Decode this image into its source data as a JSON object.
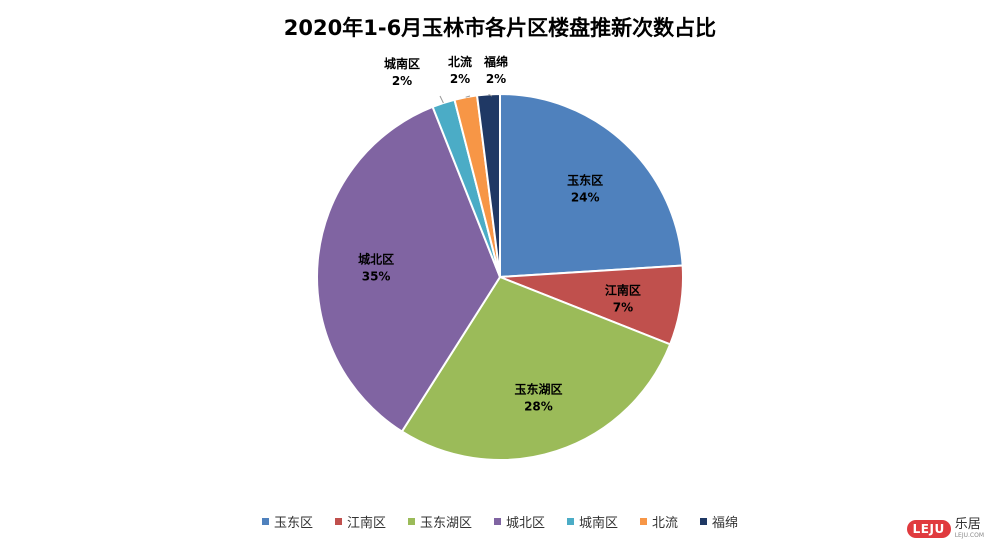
{
  "chart_data": {
    "type": "pie",
    "title": "2020年1-6月玉林市各片区楼盘推新次数占比",
    "categories": [
      "玉东区",
      "江南区",
      "玉东湖区",
      "城北区",
      "城南区",
      "北流",
      "福绵"
    ],
    "values": [
      24,
      7,
      28,
      35,
      2,
      2,
      2
    ],
    "value_labels": [
      "24%",
      "7%",
      "28%",
      "35%",
      "2%",
      "2%",
      "2%"
    ],
    "colors": [
      "#4f81bd",
      "#c0504d",
      "#9bbb59",
      "#8064a2",
      "#4bacc6",
      "#f79646",
      "#1f3864"
    ],
    "legend_position": "bottom",
    "label_style": "inside for large slices, outside with leader line for small slices"
  },
  "brand": {
    "logo_mark": "LEJU",
    "logo_cn": "乐居",
    "logo_url": "LEJU.COM"
  }
}
